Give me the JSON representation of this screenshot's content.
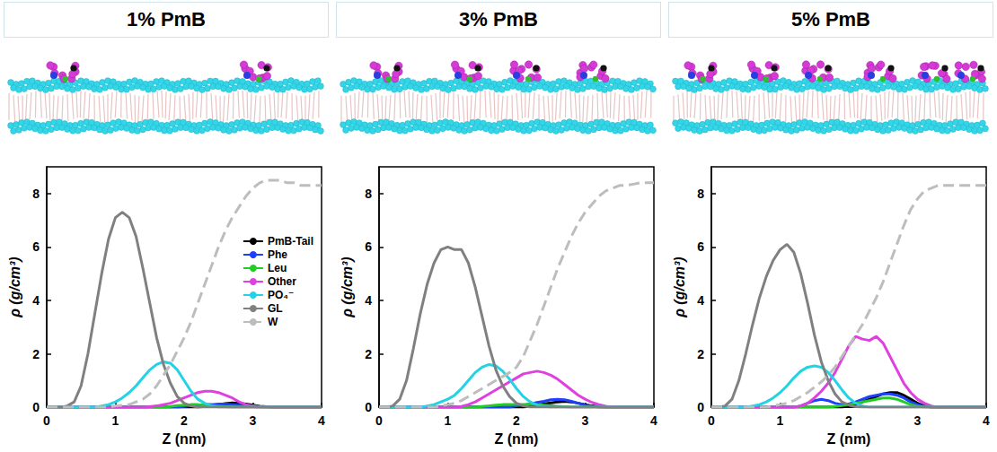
{
  "chart_data": [
    {
      "type": "line",
      "title": "1% PmB",
      "x_label": "Z (nm)",
      "y_label": "ρ (g/cm³)",
      "xlim": [
        0,
        4
      ],
      "xticks": [
        0,
        1,
        2,
        3,
        4
      ],
      "ylim": [
        0,
        9
      ],
      "yticks": [
        0,
        2,
        4,
        6,
        8
      ],
      "grid": false,
      "legend": "right",
      "x": [
        0,
        0.1,
        0.2,
        0.3,
        0.4,
        0.5,
        0.6,
        0.7,
        0.8,
        0.9,
        1.0,
        1.1,
        1.2,
        1.3,
        1.4,
        1.5,
        1.6,
        1.7,
        1.8,
        1.9,
        2.0,
        2.1,
        2.2,
        2.3,
        2.4,
        2.5,
        2.6,
        2.7,
        2.8,
        2.9,
        3.0,
        3.1,
        3.2,
        3.3,
        3.4,
        3.5,
        3.6,
        3.7,
        3.8,
        3.9,
        4.0
      ],
      "series": [
        {
          "name": "PmB-Tail",
          "color": "#000000",
          "line_style": "solid",
          "values": [
            0,
            0,
            0,
            0,
            0,
            0,
            0,
            0,
            0,
            0,
            0,
            0,
            0,
            0,
            0,
            0,
            0,
            0,
            0,
            0,
            0,
            0,
            0,
            0.03,
            0.06,
            0.1,
            0.14,
            0.16,
            0.15,
            0.12,
            0.08,
            0.04,
            0.02,
            0,
            0,
            0,
            0,
            0,
            0,
            0,
            0
          ]
        },
        {
          "name": "Phe",
          "color": "#1f3fff",
          "line_style": "solid",
          "values": [
            0,
            0,
            0,
            0,
            0,
            0,
            0,
            0,
            0,
            0,
            0,
            0,
            0,
            0,
            0,
            0,
            0,
            0,
            0,
            0,
            0.03,
            0.06,
            0.08,
            0.1,
            0.1,
            0.12,
            0.12,
            0.1,
            0.08,
            0.05,
            0.02,
            0,
            0,
            0,
            0,
            0,
            0,
            0,
            0,
            0,
            0
          ]
        },
        {
          "name": "Leu",
          "color": "#22cc22",
          "line_style": "solid",
          "values": [
            0,
            0,
            0,
            0,
            0,
            0,
            0,
            0,
            0,
            0,
            0,
            0,
            0,
            0,
            0,
            0,
            0,
            0,
            0.03,
            0.06,
            0.08,
            0.1,
            0.1,
            0.08,
            0.06,
            0.04,
            0.02,
            0,
            0,
            0,
            0,
            0,
            0,
            0,
            0,
            0,
            0,
            0,
            0,
            0,
            0
          ]
        },
        {
          "name": "Other",
          "color": "#e040e0",
          "line_style": "solid",
          "values": [
            0,
            0,
            0,
            0,
            0,
            0,
            0,
            0,
            0,
            0,
            0,
            0,
            0,
            0,
            0,
            0.02,
            0.05,
            0.1,
            0.15,
            0.25,
            0.35,
            0.45,
            0.55,
            0.6,
            0.6,
            0.55,
            0.45,
            0.35,
            0.2,
            0.1,
            0.05,
            0.02,
            0,
            0,
            0,
            0,
            0,
            0,
            0,
            0,
            0
          ]
        },
        {
          "name": "PO₄⁻",
          "color": "#22d3e6",
          "line_style": "solid",
          "values": [
            0,
            0,
            0,
            0,
            0,
            0,
            0,
            0,
            0.05,
            0.1,
            0.2,
            0.35,
            0.55,
            0.8,
            1.1,
            1.4,
            1.6,
            1.7,
            1.65,
            1.4,
            1.0,
            0.6,
            0.3,
            0.15,
            0.05,
            0,
            0,
            0,
            0,
            0,
            0,
            0,
            0,
            0,
            0,
            0,
            0,
            0,
            0,
            0,
            0
          ]
        },
        {
          "name": "GL",
          "color": "#808080",
          "line_style": "solid",
          "values": [
            0,
            0,
            0,
            0.05,
            0.2,
            0.8,
            2.0,
            3.5,
            5.0,
            6.3,
            7.1,
            7.3,
            7.1,
            6.4,
            5.2,
            3.9,
            2.6,
            1.6,
            0.9,
            0.4,
            0.15,
            0.05,
            0,
            0,
            0,
            0,
            0,
            0,
            0,
            0,
            0,
            0,
            0,
            0,
            0,
            0,
            0,
            0,
            0,
            0,
            0
          ]
        },
        {
          "name": "W",
          "color": "#bdbdbd",
          "line_style": "dashed",
          "values": [
            0,
            0,
            0,
            0,
            0,
            0,
            0,
            0,
            0,
            0,
            0.05,
            0.07,
            0.1,
            0.2,
            0.3,
            0.5,
            0.8,
            1.2,
            1.6,
            2.1,
            2.6,
            3.2,
            3.9,
            4.6,
            5.3,
            6.0,
            6.6,
            7.1,
            7.5,
            7.9,
            8.2,
            8.4,
            8.5,
            8.5,
            8.5,
            8.4,
            8.4,
            8.3,
            8.3,
            8.3,
            8.3
          ]
        }
      ]
    },
    {
      "type": "line",
      "title": "3% PmB",
      "x_label": "Z (nm)",
      "y_label": "ρ (g/cm³)",
      "xlim": [
        0,
        4
      ],
      "xticks": [
        0,
        1,
        2,
        3,
        4
      ],
      "ylim": [
        0,
        9
      ],
      "yticks": [
        0,
        2,
        4,
        6,
        8
      ],
      "grid": false,
      "x": [
        0,
        0.1,
        0.2,
        0.3,
        0.4,
        0.5,
        0.6,
        0.7,
        0.8,
        0.9,
        1.0,
        1.1,
        1.2,
        1.3,
        1.4,
        1.5,
        1.6,
        1.7,
        1.8,
        1.9,
        2.0,
        2.1,
        2.2,
        2.3,
        2.4,
        2.5,
        2.6,
        2.7,
        2.8,
        2.9,
        3.0,
        3.1,
        3.2,
        3.3,
        3.4,
        3.5,
        3.6,
        3.7,
        3.8,
        3.9,
        4.0
      ],
      "series": [
        {
          "name": "PmB-Tail",
          "color": "#000000",
          "line_style": "solid",
          "values": [
            0,
            0,
            0,
            0,
            0,
            0,
            0,
            0,
            0,
            0,
            0,
            0,
            0,
            0,
            0,
            0,
            0,
            0,
            0,
            0,
            0,
            0,
            0.04,
            0.08,
            0.12,
            0.16,
            0.2,
            0.22,
            0.2,
            0.15,
            0.1,
            0.05,
            0.02,
            0,
            0,
            0,
            0,
            0,
            0,
            0,
            0
          ]
        },
        {
          "name": "Phe",
          "color": "#1f3fff",
          "line_style": "solid",
          "values": [
            0,
            0,
            0,
            0,
            0,
            0,
            0,
            0,
            0,
            0,
            0,
            0,
            0,
            0,
            0,
            0,
            0,
            0,
            0,
            0,
            0.05,
            0.08,
            0.12,
            0.18,
            0.22,
            0.28,
            0.3,
            0.28,
            0.22,
            0.15,
            0.08,
            0.04,
            0,
            0,
            0,
            0,
            0,
            0,
            0,
            0,
            0
          ]
        },
        {
          "name": "Leu",
          "color": "#22cc22",
          "line_style": "solid",
          "values": [
            0,
            0,
            0,
            0,
            0,
            0,
            0,
            0,
            0,
            0,
            0,
            0,
            0,
            0,
            0,
            0.03,
            0.05,
            0.08,
            0.1,
            0.1,
            0.1,
            0.1,
            0.1,
            0.1,
            0.08,
            0.06,
            0.04,
            0.02,
            0,
            0,
            0,
            0,
            0,
            0,
            0,
            0,
            0,
            0,
            0,
            0,
            0
          ]
        },
        {
          "name": "Other",
          "color": "#e040e0",
          "line_style": "solid",
          "values": [
            0,
            0,
            0,
            0,
            0,
            0,
            0,
            0,
            0,
            0,
            0,
            0,
            0.03,
            0.1,
            0.2,
            0.35,
            0.5,
            0.65,
            0.8,
            0.95,
            1.1,
            1.25,
            1.3,
            1.35,
            1.3,
            1.2,
            1.05,
            0.85,
            0.65,
            0.45,
            0.3,
            0.18,
            0.1,
            0.04,
            0,
            0,
            0,
            0,
            0,
            0,
            0
          ]
        },
        {
          "name": "PO₄⁻",
          "color": "#22d3e6",
          "line_style": "solid",
          "values": [
            0,
            0,
            0,
            0,
            0,
            0,
            0,
            0.05,
            0.1,
            0.2,
            0.3,
            0.45,
            0.7,
            1.0,
            1.3,
            1.5,
            1.6,
            1.55,
            1.35,
            1.05,
            0.7,
            0.4,
            0.2,
            0.08,
            0.03,
            0,
            0,
            0,
            0,
            0,
            0,
            0,
            0,
            0,
            0,
            0,
            0,
            0,
            0,
            0,
            0
          ]
        },
        {
          "name": "GL",
          "color": "#808080",
          "line_style": "solid",
          "values": [
            0,
            0,
            0.05,
            0.3,
            1.0,
            2.2,
            3.5,
            4.6,
            5.4,
            5.9,
            6.0,
            5.9,
            5.9,
            5.4,
            4.5,
            3.4,
            2.3,
            1.4,
            0.8,
            0.4,
            0.15,
            0.05,
            0,
            0,
            0,
            0,
            0,
            0,
            0,
            0,
            0,
            0,
            0,
            0,
            0,
            0,
            0,
            0,
            0,
            0,
            0
          ]
        },
        {
          "name": "W",
          "color": "#bdbdbd",
          "line_style": "dashed",
          "values": [
            0,
            0,
            0,
            0,
            0,
            0,
            0,
            0,
            0,
            0.05,
            0.1,
            0.15,
            0.25,
            0.4,
            0.55,
            0.7,
            0.85,
            1.0,
            1.15,
            1.3,
            1.5,
            1.9,
            2.5,
            3.1,
            3.8,
            4.5,
            5.2,
            5.8,
            6.4,
            6.9,
            7.3,
            7.6,
            7.9,
            8.1,
            8.2,
            8.3,
            8.3,
            8.35,
            8.4,
            8.4,
            8.4
          ]
        }
      ]
    },
    {
      "type": "line",
      "title": "5% PmB",
      "x_label": "Z (nm)",
      "y_label": "ρ (g/cm³)",
      "xlim": [
        0,
        4
      ],
      "xticks": [
        0,
        1,
        2,
        3,
        4
      ],
      "ylim": [
        0,
        9
      ],
      "yticks": [
        0,
        2,
        4,
        6,
        8
      ],
      "grid": false,
      "x": [
        0,
        0.1,
        0.2,
        0.3,
        0.4,
        0.5,
        0.6,
        0.7,
        0.8,
        0.9,
        1.0,
        1.1,
        1.2,
        1.3,
        1.4,
        1.5,
        1.6,
        1.7,
        1.8,
        1.9,
        2.0,
        2.1,
        2.2,
        2.3,
        2.4,
        2.5,
        2.6,
        2.7,
        2.8,
        2.9,
        3.0,
        3.1,
        3.2,
        3.3,
        3.4,
        3.5,
        3.6,
        3.7,
        3.8,
        3.9,
        4.0
      ],
      "series": [
        {
          "name": "PmB-Tail",
          "color": "#000000",
          "line_style": "solid",
          "values": [
            0,
            0,
            0,
            0,
            0,
            0,
            0,
            0,
            0,
            0,
            0,
            0,
            0,
            0,
            0,
            0,
            0,
            0,
            0,
            0,
            0.05,
            0.1,
            0.2,
            0.3,
            0.4,
            0.5,
            0.55,
            0.55,
            0.45,
            0.3,
            0.15,
            0.05,
            0,
            0,
            0,
            0,
            0,
            0,
            0,
            0,
            0
          ]
        },
        {
          "name": "Phe",
          "color": "#1f3fff",
          "line_style": "solid",
          "values": [
            0,
            0,
            0,
            0,
            0,
            0,
            0,
            0,
            0,
            0,
            0,
            0,
            0,
            0.05,
            0.15,
            0.25,
            0.3,
            0.25,
            0.15,
            0.1,
            0.12,
            0.2,
            0.3,
            0.4,
            0.45,
            0.5,
            0.5,
            0.45,
            0.35,
            0.2,
            0.1,
            0.04,
            0,
            0,
            0,
            0,
            0,
            0,
            0,
            0,
            0
          ]
        },
        {
          "name": "Leu",
          "color": "#22cc22",
          "line_style": "solid",
          "values": [
            0,
            0,
            0,
            0,
            0,
            0,
            0,
            0,
            0,
            0,
            0,
            0,
            0,
            0,
            0,
            0,
            0,
            0,
            0.03,
            0.06,
            0.1,
            0.15,
            0.2,
            0.25,
            0.3,
            0.35,
            0.35,
            0.3,
            0.2,
            0.1,
            0.04,
            0,
            0,
            0,
            0,
            0,
            0,
            0,
            0,
            0,
            0
          ]
        },
        {
          "name": "Other",
          "color": "#e040e0",
          "line_style": "solid",
          "values": [
            0,
            0,
            0,
            0,
            0,
            0,
            0,
            0,
            0,
            0,
            0,
            0,
            0,
            0.05,
            0.15,
            0.35,
            0.6,
            0.9,
            1.3,
            1.8,
            2.3,
            2.65,
            2.55,
            2.5,
            2.65,
            2.4,
            1.9,
            1.4,
            0.9,
            0.55,
            0.3,
            0.15,
            0.05,
            0,
            0,
            0,
            0,
            0,
            0,
            0,
            0
          ]
        },
        {
          "name": "PO₄⁻",
          "color": "#22d3e6",
          "line_style": "solid",
          "values": [
            0,
            0,
            0,
            0,
            0,
            0,
            0.05,
            0.1,
            0.2,
            0.35,
            0.55,
            0.8,
            1.1,
            1.35,
            1.5,
            1.55,
            1.5,
            1.3,
            1.0,
            0.65,
            0.35,
            0.15,
            0.05,
            0,
            0,
            0,
            0,
            0,
            0,
            0,
            0,
            0,
            0,
            0,
            0,
            0,
            0,
            0,
            0,
            0,
            0
          ]
        },
        {
          "name": "GL",
          "color": "#808080",
          "line_style": "solid",
          "values": [
            0,
            0,
            0.05,
            0.3,
            1.0,
            2.0,
            3.1,
            4.1,
            4.9,
            5.5,
            5.9,
            6.1,
            5.8,
            5.0,
            3.9,
            2.7,
            1.7,
            1.0,
            0.5,
            0.2,
            0.08,
            0.02,
            0,
            0,
            0,
            0,
            0,
            0,
            0,
            0,
            0,
            0,
            0,
            0,
            0,
            0,
            0,
            0,
            0,
            0,
            0
          ]
        },
        {
          "name": "W",
          "color": "#bdbdbd",
          "line_style": "dashed",
          "values": [
            0,
            0,
            0,
            0,
            0,
            0,
            0,
            0,
            0,
            0.05,
            0.1,
            0.15,
            0.25,
            0.4,
            0.55,
            0.75,
            0.95,
            1.2,
            1.5,
            1.9,
            2.3,
            2.7,
            3.1,
            3.6,
            4.1,
            4.7,
            5.4,
            6.1,
            6.8,
            7.4,
            7.8,
            8.1,
            8.2,
            8.3,
            8.3,
            8.3,
            8.3,
            8.3,
            8.3,
            8.3,
            8.3
          ]
        }
      ]
    }
  ]
}
